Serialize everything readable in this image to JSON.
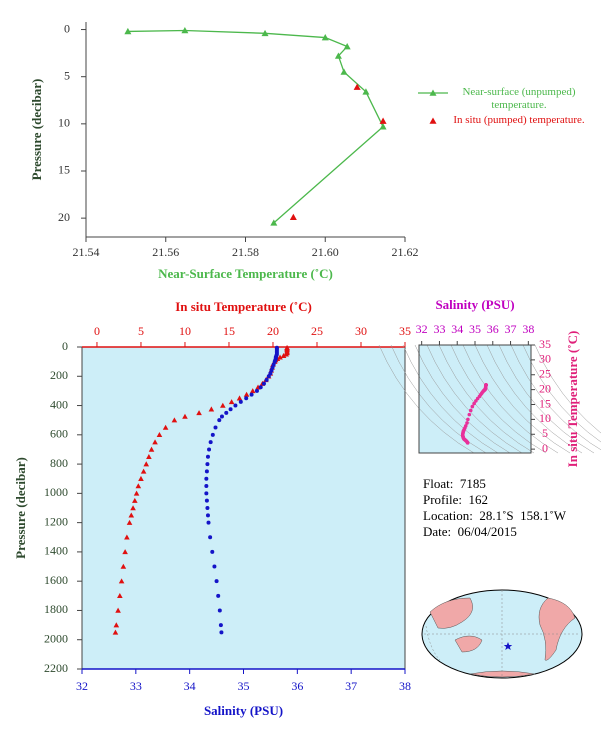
{
  "chart_data": [
    {
      "type": "line",
      "xlabel": "Near-Surface Temperature (˚C)",
      "ylabel": "Pressure (decibar)",
      "xlim": [
        21.54,
        21.62
      ],
      "xticks": [
        21.54,
        21.56,
        21.58,
        {
          "value": 21.6,
          "label": "21.60"
        },
        21.62
      ],
      "ylim": [
        -0.8,
        22
      ],
      "yticks": [
        0,
        5,
        10,
        15,
        20
      ],
      "y_reversed": true,
      "series": [
        {
          "name": "Near-surface (unpumped) temperature.",
          "color": "#4cb84c",
          "line": true,
          "x": [
            21.5505,
            21.5648,
            21.5849,
            21.6,
            21.6055,
            21.6033,
            21.6047,
            21.6102,
            21.6145,
            21.5871
          ],
          "y": [
            0.2,
            0.1,
            0.4,
            0.85,
            1.8,
            2.8,
            4.5,
            6.6,
            10.3,
            20.5
          ]
        },
        {
          "name": "In situ (pumped) temperature.",
          "color": "#e01010",
          "line": false,
          "x": [
            21.608,
            21.6145,
            21.592
          ],
          "y": [
            6.1,
            9.7,
            19.9
          ]
        }
      ]
    },
    {
      "type": "profile",
      "xlabel": "Salinity (PSU)",
      "x2label": "In situ Temperature (˚C)",
      "ylabel": "Pressure (decibar)",
      "xlim": [
        32,
        38
      ],
      "xticks": [
        32,
        33,
        34,
        35,
        36,
        37,
        38
      ],
      "x2lim": [
        -1.7,
        35
      ],
      "x2ticks": [
        0,
        5,
        10,
        15,
        20,
        25,
        30,
        35
      ],
      "ylim": [
        0,
        2200
      ],
      "yticks": [
        0,
        200,
        400,
        600,
        800,
        1000,
        1200,
        1400,
        1600,
        1800,
        2000,
        2200
      ],
      "y_reversed": true,
      "y": [
        5,
        10,
        20,
        30,
        40,
        50,
        60,
        70,
        80,
        90,
        100,
        120,
        140,
        160,
        180,
        200,
        225,
        250,
        275,
        300,
        325,
        350,
        375,
        400,
        425,
        450,
        475,
        500,
        550,
        600,
        650,
        700,
        750,
        800,
        850,
        900,
        950,
        1000,
        1050,
        1100,
        1150,
        1200,
        1300,
        1400,
        1500,
        1600,
        1700,
        1800,
        1900,
        1950
      ],
      "series": [
        {
          "color": "#e01010",
          "axis": "x2",
          "values": [
            21.6,
            21.6,
            21.6,
            21.6,
            21.6,
            21.5,
            21.2,
            20.8,
            20.5,
            20.3,
            20.2,
            20.0,
            19.9,
            19.8,
            19.7,
            19.5,
            19.2,
            18.8,
            18.3,
            17.7,
            17.0,
            16.2,
            15.3,
            14.3,
            13.0,
            11.6,
            10.0,
            8.8,
            7.8,
            7.1,
            6.6,
            6.2,
            5.9,
            5.6,
            5.3,
            5.0,
            4.7,
            4.5,
            4.3,
            4.1,
            3.9,
            3.7,
            3.4,
            3.2,
            3.0,
            2.8,
            2.6,
            2.4,
            2.2,
            2.1
          ]
        },
        {
          "color": "#1414c8",
          "axis": "x",
          "values": [
            35.62,
            35.62,
            35.62,
            35.62,
            35.62,
            35.62,
            35.61,
            35.6,
            35.6,
            35.59,
            35.58,
            35.56,
            35.54,
            35.52,
            35.5,
            35.47,
            35.43,
            35.38,
            35.32,
            35.25,
            35.15,
            35.05,
            34.95,
            34.85,
            34.76,
            34.68,
            34.6,
            34.55,
            34.48,
            34.43,
            34.39,
            34.36,
            34.34,
            34.33,
            34.32,
            34.31,
            34.31,
            34.31,
            34.32,
            34.33,
            34.34,
            34.35,
            34.38,
            34.42,
            34.46,
            34.5,
            34.53,
            34.56,
            34.58,
            34.59
          ]
        }
      ]
    },
    {
      "type": "ts",
      "color": "#e8309a",
      "xlabel": "Salinity (PSU)",
      "ylabel": "In situ Temperature (˚C)",
      "xlim": [
        31.85,
        38.15
      ],
      "xticks": [
        32,
        33,
        34,
        35,
        36,
        37,
        38
      ],
      "ylim": [
        -1.3,
        35
      ],
      "yticks": [
        0,
        5,
        10,
        15,
        20,
        25,
        30,
        35
      ]
    }
  ],
  "info": {
    "lines": [
      "Float:  7185",
      "Profile:  162",
      "Location:  28.1˚S  158.1˚W",
      "Date:  06/04/2015"
    ]
  }
}
